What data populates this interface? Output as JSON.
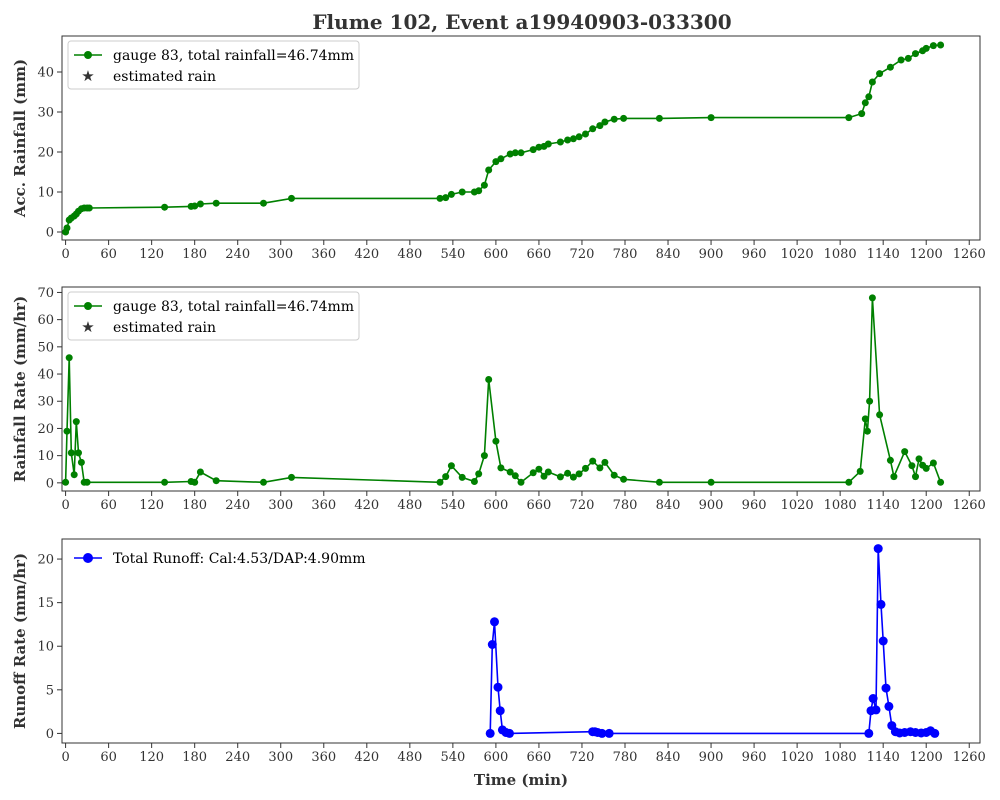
{
  "figure": {
    "title": "Flume 102, Event a19940903-033300"
  },
  "chart_data": [
    {
      "type": "line",
      "ylabel": "Acc. Rainfall (mm)",
      "xlim": [
        -5,
        1275
      ],
      "ylim": [
        -2,
        49
      ],
      "xticks": [
        0,
        60,
        120,
        180,
        240,
        300,
        360,
        420,
        480,
        540,
        600,
        660,
        720,
        780,
        840,
        900,
        960,
        1020,
        1080,
        1140,
        1200,
        1260
      ],
      "yticks": [
        0,
        10,
        20,
        30,
        40
      ],
      "legend": {
        "position": "top-left",
        "entries": [
          "gauge 83, total rainfall=46.74mm",
          "estimated rain"
        ]
      },
      "series": [
        {
          "name": "gauge 83, total rainfall=46.74mm",
          "color": "#008000",
          "marker": "circle",
          "x": [
            0,
            2,
            5,
            8,
            12,
            15,
            18,
            22,
            26,
            30,
            33,
            138,
            175,
            180,
            188,
            210,
            276,
            315,
            522,
            530,
            538,
            553,
            570,
            576,
            584,
            590,
            600,
            607,
            620,
            627,
            635,
            652,
            660,
            667,
            673,
            690,
            700,
            708,
            716,
            725,
            735,
            745,
            752,
            765,
            778,
            828,
            900,
            1092,
            1110,
            1115,
            1120,
            1125,
            1135,
            1150,
            1165,
            1175,
            1185,
            1195,
            1200,
            1210,
            1220
          ],
          "y": [
            0,
            1,
            3,
            3.5,
            4,
            4.5,
            5.2,
            5.8,
            6,
            6,
            6,
            6.2,
            6.4,
            6.5,
            7,
            7.2,
            7.2,
            8.4,
            8.4,
            8.6,
            9.4,
            10,
            10,
            10.3,
            11.7,
            15.5,
            17.6,
            18.3,
            19.5,
            19.8,
            19.8,
            20.6,
            21.2,
            21.4,
            22,
            22.5,
            23,
            23.3,
            23.8,
            24.5,
            25.8,
            26.6,
            27.5,
            28.2,
            28.4,
            28.4,
            28.6,
            28.6,
            29.6,
            32.3,
            33.8,
            37.5,
            39.6,
            41.2,
            43,
            43.4,
            44.6,
            45.3,
            45.9,
            46.6,
            46.74
          ]
        },
        {
          "name": "estimated rain",
          "color": "#ff0000",
          "marker": "star",
          "x": [],
          "y": []
        }
      ]
    },
    {
      "type": "line",
      "ylabel": "Rainfall Rate (mm/hr)",
      "xlim": [
        -5,
        1275
      ],
      "ylim": [
        -3,
        72
      ],
      "xticks": [
        0,
        60,
        120,
        180,
        240,
        300,
        360,
        420,
        480,
        540,
        600,
        660,
        720,
        780,
        840,
        900,
        960,
        1020,
        1080,
        1140,
        1200,
        1260
      ],
      "yticks": [
        0,
        10,
        20,
        30,
        40,
        50,
        60,
        70
      ],
      "legend": {
        "position": "top-left",
        "entries": [
          "gauge 83, total rainfall=46.74mm",
          "estimated rain"
        ]
      },
      "series": [
        {
          "name": "gauge 83, total rainfall=46.74mm",
          "color": "#008000",
          "marker": "circle",
          "x": [
            0,
            2,
            5,
            8,
            12,
            15,
            18,
            22,
            26,
            30,
            138,
            175,
            180,
            188,
            210,
            276,
            315,
            522,
            530,
            538,
            553,
            570,
            576,
            584,
            590,
            600,
            607,
            620,
            627,
            635,
            652,
            660,
            667,
            673,
            690,
            700,
            708,
            716,
            725,
            735,
            745,
            752,
            765,
            778,
            828,
            900,
            1092,
            1108,
            1115,
            1118,
            1121,
            1125,
            1135,
            1150,
            1155,
            1170,
            1180,
            1185,
            1190,
            1195,
            1200,
            1210,
            1220
          ],
          "y": [
            0.2,
            19,
            46,
            11,
            3,
            22.5,
            11,
            7.5,
            0.2,
            0.2,
            0.2,
            0.5,
            0.2,
            4,
            0.8,
            0.2,
            2,
            0.2,
            2.3,
            6.3,
            2,
            0.5,
            3.3,
            10,
            38,
            15.3,
            5.5,
            4,
            2.6,
            0.2,
            3.7,
            5,
            2.4,
            4,
            2.2,
            3.5,
            2.1,
            3.3,
            5.3,
            8,
            5.5,
            7.5,
            2.8,
            1.3,
            0.2,
            0.2,
            0.2,
            4.2,
            23.5,
            19,
            30,
            68,
            25,
            8.3,
            2.3,
            11.5,
            6.3,
            2.3,
            8.8,
            6.5,
            5.3,
            7.3,
            0.2
          ]
        },
        {
          "name": "estimated rain",
          "color": "#ff0000",
          "marker": "star",
          "x": [],
          "y": []
        }
      ]
    },
    {
      "type": "line",
      "ylabel": "Runoff Rate (mm/hr)",
      "xlabel": "Time (min)",
      "xlim": [
        -5,
        1275
      ],
      "ylim": [
        -1.1,
        22.3
      ],
      "xticks": [
        0,
        60,
        120,
        180,
        240,
        300,
        360,
        420,
        480,
        540,
        600,
        660,
        720,
        780,
        840,
        900,
        960,
        1020,
        1080,
        1140,
        1200,
        1260
      ],
      "yticks": [
        0,
        5,
        10,
        15,
        20
      ],
      "legend": {
        "position": "top-left",
        "entries": [
          "Total Runoff: Cal:4.53/DAP:4.90mm"
        ]
      },
      "series": [
        {
          "name": "Total Runoff: Cal:4.53/DAP:4.90mm",
          "color": "#0000ff",
          "marker": "circle",
          "x": [
            592,
            595,
            598,
            603,
            606,
            609,
            614,
            619,
            735,
            738,
            742,
            748,
            758,
            1120,
            1123,
            1126,
            1130,
            1133,
            1137,
            1140,
            1144,
            1148,
            1152,
            1157,
            1163,
            1170,
            1178,
            1185,
            1193,
            1200,
            1206,
            1212
          ],
          "y": [
            0,
            10.2,
            12.8,
            5.3,
            2.6,
            0.4,
            0.1,
            0,
            0.2,
            0.2,
            0.1,
            0,
            0,
            0,
            2.6,
            4,
            2.7,
            21.2,
            14.8,
            10.6,
            5.2,
            3.1,
            0.9,
            0.2,
            0.05,
            0.1,
            0.2,
            0.1,
            0.05,
            0.1,
            0.3,
            0
          ]
        }
      ]
    }
  ]
}
